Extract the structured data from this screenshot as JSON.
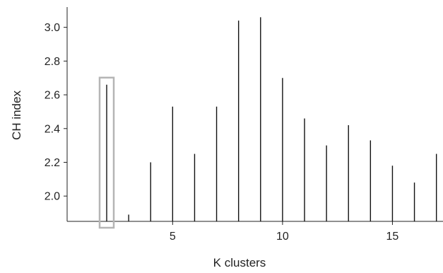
{
  "chart_data": {
    "type": "bar",
    "title": "",
    "xlabel": "K clusters",
    "ylabel": "CH index",
    "x": [
      2,
      3,
      4,
      5,
      6,
      7,
      8,
      9,
      10,
      11,
      12,
      13,
      14,
      15,
      16,
      17
    ],
    "values": [
      2.66,
      1.89,
      2.2,
      2.53,
      2.25,
      2.53,
      3.04,
      3.06,
      2.7,
      2.46,
      2.3,
      2.42,
      2.33,
      2.18,
      2.08,
      2.25
    ],
    "xlim": [
      0.2,
      17.3
    ],
    "ylim": [
      1.85,
      3.12
    ],
    "xticks": [
      5,
      10,
      15
    ],
    "yticks": [
      2.0,
      2.2,
      2.4,
      2.6,
      2.8,
      3.0
    ],
    "highlight_x": 2,
    "grid": false,
    "legend": "none",
    "bar_color": "#111111",
    "highlight_color": "#b5b5b5"
  }
}
